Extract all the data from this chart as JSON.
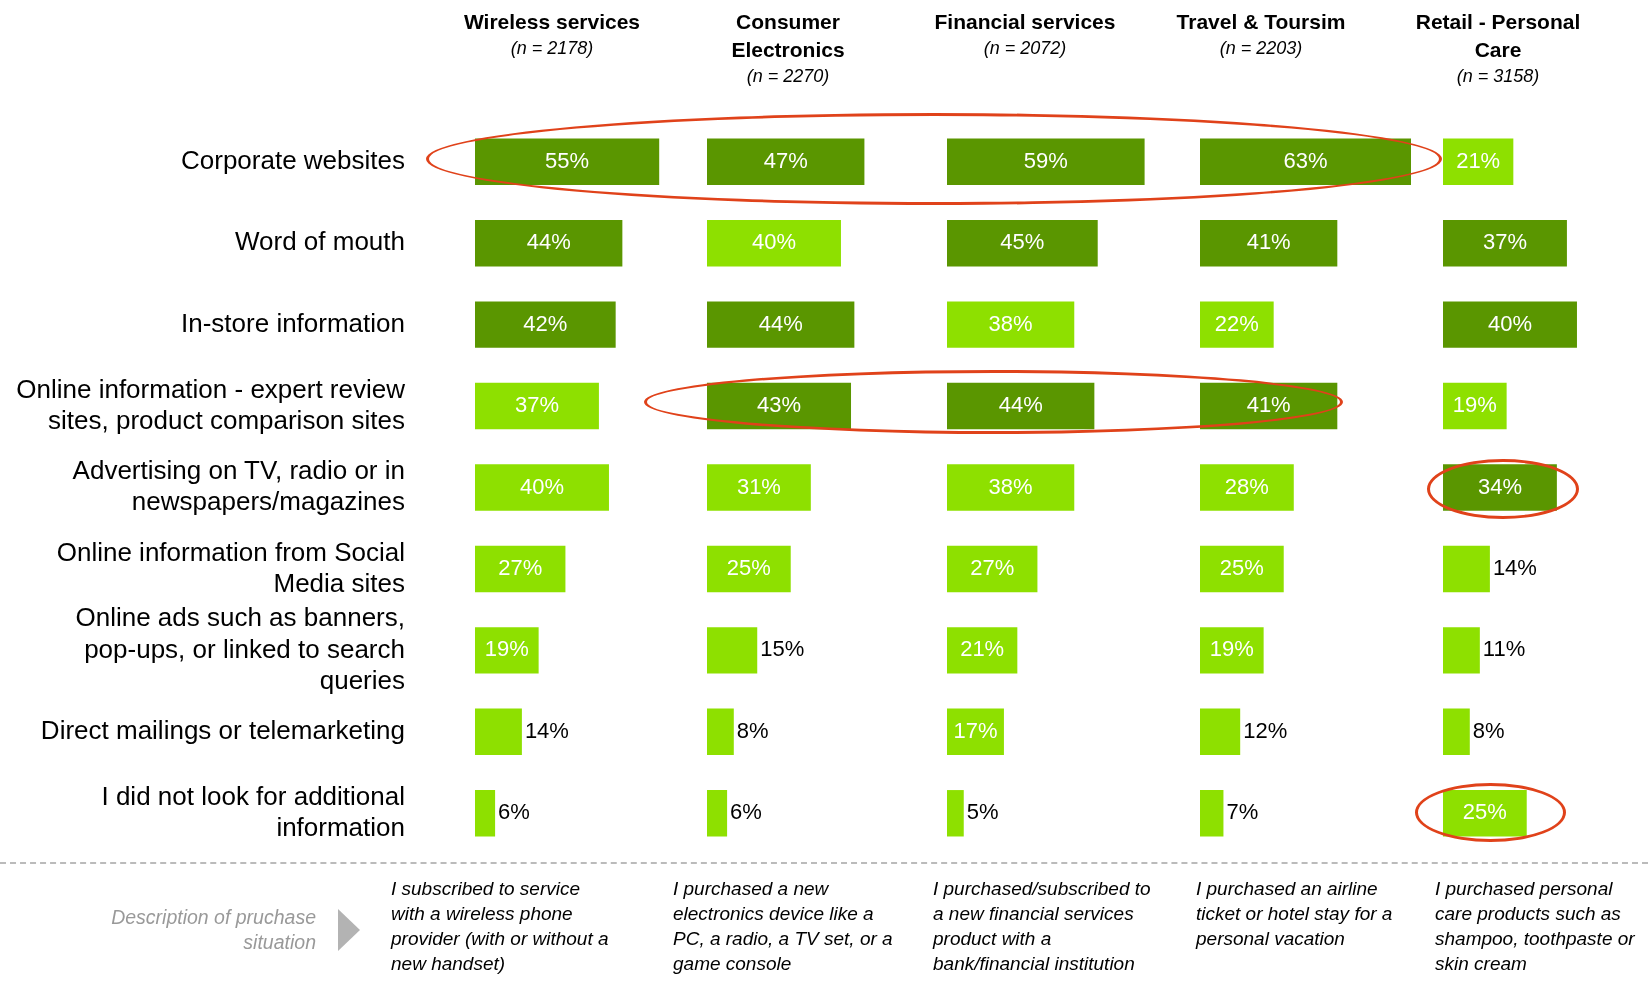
{
  "chart_data": [
    {
      "type": "bar",
      "orientation": "horizontal",
      "title": "Wireless services",
      "subtitle": "(n = 2178)",
      "categories": [
        "Corporate websites",
        "Word of mouth",
        "In-store information",
        "Online information - expert review sites, product comparison sites",
        "Advertising on TV, radio or in newspapers/magazines",
        "Online information from Social Media sites",
        "Online ads such as banners, pop-ups, or linked to search queries",
        "Direct mailings or telemarketing",
        "I did not look for additional information"
      ],
      "values": [
        55,
        44,
        42,
        37,
        40,
        27,
        19,
        14,
        6
      ],
      "colors": [
        "#5a9600",
        "#5a9600",
        "#5a9600",
        "#8ee000",
        "#8ee000",
        "#8ee000",
        "#8ee000",
        "#8ee000",
        "#8ee000"
      ],
      "value_labels": [
        "55%",
        "44%",
        "42%",
        "37%",
        "40%",
        "27%",
        "19%",
        "14%",
        "6%"
      ],
      "tick_labels": "y",
      "annotations": [
        "Description of pruchase situation",
        "I subscribed to service with a wireless phone provider (with or without a new handset)"
      ]
    },
    {
      "type": "bar",
      "orientation": "horizontal",
      "title": "Consumer Electronics",
      "subtitle": "(n = 2270)",
      "categories": [
        "Corporate websites",
        "Word of mouth",
        "In-store information",
        "Online information - expert review sites, product comparison sites",
        "Advertising on TV, radio or in newspapers/magazines",
        "Online information from Social Media sites",
        "Online ads such as banners, pop-ups, or linked to search queries",
        "Direct mailings or telemarketing",
        "I did not look for additional information"
      ],
      "values": [
        47,
        40,
        44,
        43,
        31,
        25,
        15,
        8,
        6
      ],
      "colors": [
        "#5a9600",
        "#8ee000",
        "#5a9600",
        "#5a9600",
        "#8ee000",
        "#8ee000",
        "#8ee000",
        "#8ee000",
        "#8ee000"
      ],
      "value_labels": [
        "47%",
        "40%",
        "44%",
        "43%",
        "31%",
        "25%",
        "15%",
        "8%",
        "6%"
      ],
      "tick_labels": false,
      "annotations": [
        "I purchased a new electronics device like a PC, a radio, a TV set, or a game console"
      ]
    },
    {
      "type": "bar",
      "orientation": "horizontal",
      "title": "Financial services",
      "subtitle": "(n = 2072)",
      "categories": [
        "Corporate websites",
        "Word of mouth",
        "In-store information",
        "Online information - expert review sites, product comparison sites",
        "Advertising on TV, radio or in newspapers/magazines",
        "Online information from Social Media sites",
        "Online ads such as banners, pop-ups, or linked to search queries",
        "Direct mailings or telemarketing",
        "I did not look for additional information"
      ],
      "values": [
        59,
        45,
        38,
        44,
        38,
        27,
        21,
        17,
        5
      ],
      "colors": [
        "#5a9600",
        "#5a9600",
        "#8ee000",
        "#5a9600",
        "#8ee000",
        "#8ee000",
        "#8ee000",
        "#8ee000",
        "#8ee000"
      ],
      "value_labels": [
        "59%",
        "45%",
        "38%",
        "44%",
        "38%",
        "27%",
        "21%",
        "17%",
        "5%"
      ],
      "tick_labels": false,
      "annotations": [
        "I purchased/subscribed to a new financial services product with a bank/financial institution"
      ]
    },
    {
      "type": "bar",
      "orientation": "horizontal",
      "title": "Travel & Toursim",
      "subtitle": "(n = 2203)",
      "categories": [
        "Corporate websites",
        "Word of mouth",
        "In-store information",
        "Online information - expert review sites, product comparison sites",
        "Advertising on TV, radio or in newspapers/magazines",
        "Online information from Social Media sites",
        "Online ads such as banners, pop-ups, or linked to search queries",
        "Direct mailings or telemarketing",
        "I did not look for additional information"
      ],
      "values": [
        63,
        41,
        22,
        41,
        28,
        25,
        19,
        12,
        7
      ],
      "colors": [
        "#5a9600",
        "#5a9600",
        "#8ee000",
        "#5a9600",
        "#8ee000",
        "#8ee000",
        "#8ee000",
        "#8ee000",
        "#8ee000"
      ],
      "value_labels": [
        "63%",
        "41%",
        "22%",
        "41%",
        "28%",
        "25%",
        "19%",
        "12%",
        "7%"
      ],
      "tick_labels": false,
      "annotations": [
        "I purchased an airline ticket or hotel stay for a personal vacation"
      ]
    },
    {
      "type": "bar",
      "orientation": "horizontal",
      "title": "Retail - Personal Care",
      "subtitle": "(n = 3158)",
      "categories": [
        "Corporate websites",
        "Word of mouth",
        "In-store information",
        "Online information - expert review sites, product comparison sites",
        "Advertising on TV, radio or in newspapers/magazines",
        "Online information from Social Media sites",
        "Online ads such as banners, pop-ups, or linked to search queries",
        "Direct mailings or telemarketing",
        "I did not look for additional information"
      ],
      "values": [
        21,
        37,
        40,
        19,
        34,
        14,
        11,
        8,
        25
      ],
      "colors": [
        "#8ee000",
        "#5a9600",
        "#5a9600",
        "#8ee000",
        "#5a9600",
        "#8ee000",
        "#8ee000",
        "#8ee000",
        "#8ee000"
      ],
      "value_labels": [
        "21%",
        "37%",
        "40%",
        "19%",
        "34%",
        "14%",
        "11%",
        "8%",
        "25%"
      ],
      "tick_labels": false,
      "annotations": [
        "I purchased personal care products such as shampoo, toothpaste or skin cream"
      ]
    }
  ]
}
